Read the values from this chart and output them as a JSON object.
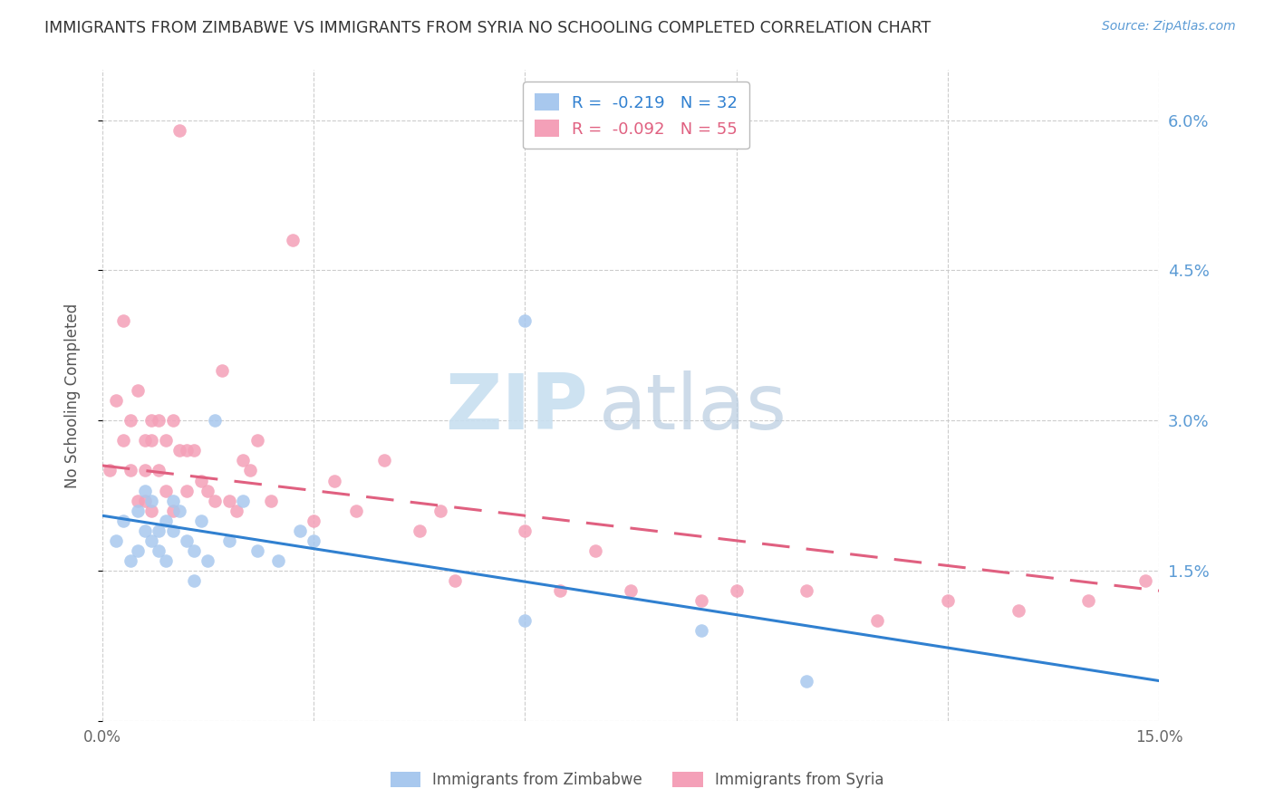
{
  "title": "IMMIGRANTS FROM ZIMBABWE VS IMMIGRANTS FROM SYRIA NO SCHOOLING COMPLETED CORRELATION CHART",
  "source": "Source: ZipAtlas.com",
  "ylabel": "No Schooling Completed",
  "xlim": [
    0.0,
    0.15
  ],
  "ylim": [
    0.0,
    0.065
  ],
  "xticks": [
    0.0,
    0.03,
    0.06,
    0.09,
    0.12,
    0.15
  ],
  "xticklabels": [
    "0.0%",
    "",
    "",
    "",
    "",
    "15.0%"
  ],
  "yticks": [
    0.0,
    0.015,
    0.03,
    0.045,
    0.06
  ],
  "yticklabels": [
    "",
    "1.5%",
    "3.0%",
    "4.5%",
    "6.0%"
  ],
  "legend_labels": [
    "R =  -0.219   N = 32",
    "R =  -0.092   N = 55"
  ],
  "blue_color": "#a8c8ee",
  "pink_color": "#f4a0b8",
  "trendline_blue": "#3080d0",
  "trendline_pink": "#e06080",
  "grid_color": "#cccccc",
  "title_color": "#333333",
  "axis_label_color": "#555555",
  "tick_color_right": "#5b9bd5",
  "tick_color_bottom": "#666666",
  "zimbabwe_x": [
    0.002,
    0.003,
    0.004,
    0.005,
    0.005,
    0.006,
    0.006,
    0.007,
    0.007,
    0.008,
    0.008,
    0.009,
    0.009,
    0.01,
    0.01,
    0.011,
    0.012,
    0.013,
    0.013,
    0.014,
    0.015,
    0.016,
    0.018,
    0.02,
    0.022,
    0.025,
    0.028,
    0.03,
    0.06,
    0.085,
    0.06,
    0.1
  ],
  "zimbabwe_y": [
    0.018,
    0.02,
    0.016,
    0.021,
    0.017,
    0.019,
    0.023,
    0.018,
    0.022,
    0.019,
    0.017,
    0.02,
    0.016,
    0.022,
    0.019,
    0.021,
    0.018,
    0.014,
    0.017,
    0.02,
    0.016,
    0.03,
    0.018,
    0.022,
    0.017,
    0.016,
    0.019,
    0.018,
    0.01,
    0.009,
    0.04,
    0.004
  ],
  "syria_x": [
    0.001,
    0.002,
    0.003,
    0.003,
    0.004,
    0.004,
    0.005,
    0.005,
    0.006,
    0.006,
    0.006,
    0.007,
    0.007,
    0.007,
    0.008,
    0.008,
    0.009,
    0.009,
    0.01,
    0.01,
    0.011,
    0.011,
    0.012,
    0.012,
    0.013,
    0.014,
    0.015,
    0.016,
    0.017,
    0.018,
    0.019,
    0.02,
    0.021,
    0.022,
    0.024,
    0.027,
    0.03,
    0.033,
    0.036,
    0.04,
    0.045,
    0.048,
    0.05,
    0.06,
    0.065,
    0.07,
    0.075,
    0.085,
    0.09,
    0.1,
    0.11,
    0.12,
    0.13,
    0.14,
    0.148
  ],
  "syria_y": [
    0.025,
    0.032,
    0.04,
    0.028,
    0.03,
    0.025,
    0.033,
    0.022,
    0.028,
    0.025,
    0.022,
    0.03,
    0.028,
    0.021,
    0.03,
    0.025,
    0.028,
    0.023,
    0.03,
    0.021,
    0.059,
    0.027,
    0.027,
    0.023,
    0.027,
    0.024,
    0.023,
    0.022,
    0.035,
    0.022,
    0.021,
    0.026,
    0.025,
    0.028,
    0.022,
    0.048,
    0.02,
    0.024,
    0.021,
    0.026,
    0.019,
    0.021,
    0.014,
    0.019,
    0.013,
    0.017,
    0.013,
    0.012,
    0.013,
    0.013,
    0.01,
    0.012,
    0.011,
    0.012,
    0.014
  ],
  "zim_trend_x": [
    0.0,
    0.15
  ],
  "zim_trend_y": [
    0.0205,
    0.004
  ],
  "syr_trend_x": [
    0.0,
    0.15
  ],
  "syr_trend_y": [
    0.0255,
    0.013
  ]
}
